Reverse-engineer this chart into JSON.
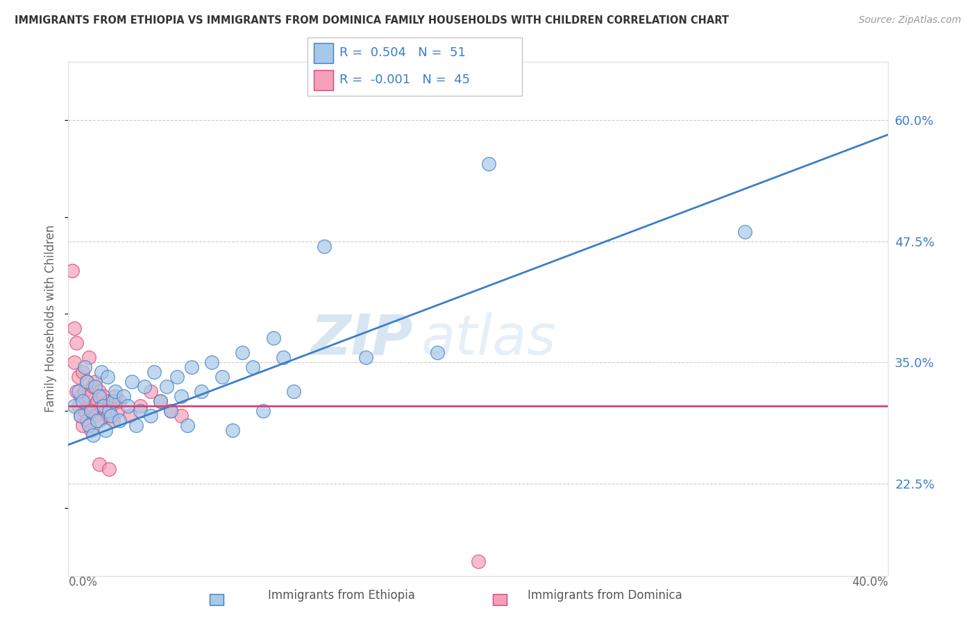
{
  "title": "IMMIGRANTS FROM ETHIOPIA VS IMMIGRANTS FROM DOMINICA FAMILY HOUSEHOLDS WITH CHILDREN CORRELATION CHART",
  "source": "Source: ZipAtlas.com",
  "xlabel_bottom_left": "0.0%",
  "xlabel_bottom_right": "40.0%",
  "ylabel_label": "Family Households with Children",
  "y_ticks_right": [
    22.5,
    35.0,
    47.5,
    60.0
  ],
  "xlim": [
    0.0,
    40.0
  ],
  "ylim": [
    13.0,
    66.0
  ],
  "legend_label_blue": "Immigrants from Ethiopia",
  "legend_label_pink": "Immigrants from Dominica",
  "R_blue": 0.504,
  "N_blue": 51,
  "R_pink": -0.001,
  "N_pink": 45,
  "color_blue": "#a8c8e8",
  "color_pink": "#f4a0b8",
  "line_blue": "#3a7ec8",
  "line_pink": "#e04070",
  "watermark_zip": "ZIP",
  "watermark_atlas": "atlas",
  "blue_dots": [
    [
      0.3,
      30.5
    ],
    [
      0.5,
      32.0
    ],
    [
      0.6,
      29.5
    ],
    [
      0.7,
      31.0
    ],
    [
      0.8,
      34.5
    ],
    [
      0.9,
      33.0
    ],
    [
      1.0,
      28.5
    ],
    [
      1.1,
      30.0
    ],
    [
      1.2,
      27.5
    ],
    [
      1.3,
      32.5
    ],
    [
      1.4,
      29.0
    ],
    [
      1.5,
      31.5
    ],
    [
      1.6,
      34.0
    ],
    [
      1.7,
      30.5
    ],
    [
      1.8,
      28.0
    ],
    [
      1.9,
      33.5
    ],
    [
      2.0,
      30.0
    ],
    [
      2.1,
      29.5
    ],
    [
      2.2,
      31.0
    ],
    [
      2.3,
      32.0
    ],
    [
      2.5,
      29.0
    ],
    [
      2.7,
      31.5
    ],
    [
      2.9,
      30.5
    ],
    [
      3.1,
      33.0
    ],
    [
      3.3,
      28.5
    ],
    [
      3.5,
      30.0
    ],
    [
      3.7,
      32.5
    ],
    [
      4.0,
      29.5
    ],
    [
      4.2,
      34.0
    ],
    [
      4.5,
      31.0
    ],
    [
      4.8,
      32.5
    ],
    [
      5.0,
      30.0
    ],
    [
      5.3,
      33.5
    ],
    [
      5.5,
      31.5
    ],
    [
      5.8,
      28.5
    ],
    [
      6.0,
      34.5
    ],
    [
      6.5,
      32.0
    ],
    [
      7.0,
      35.0
    ],
    [
      7.5,
      33.5
    ],
    [
      8.0,
      28.0
    ],
    [
      8.5,
      36.0
    ],
    [
      9.0,
      34.5
    ],
    [
      9.5,
      30.0
    ],
    [
      10.0,
      37.5
    ],
    [
      10.5,
      35.5
    ],
    [
      11.0,
      32.0
    ],
    [
      12.5,
      47.0
    ],
    [
      14.5,
      35.5
    ],
    [
      18.0,
      36.0
    ],
    [
      20.5,
      55.5
    ],
    [
      33.0,
      48.5
    ]
  ],
  "pink_dots": [
    [
      0.2,
      44.5
    ],
    [
      0.3,
      38.5
    ],
    [
      0.3,
      35.0
    ],
    [
      0.4,
      32.0
    ],
    [
      0.4,
      37.0
    ],
    [
      0.5,
      30.5
    ],
    [
      0.5,
      33.5
    ],
    [
      0.6,
      31.5
    ],
    [
      0.6,
      29.5
    ],
    [
      0.7,
      34.0
    ],
    [
      0.7,
      28.5
    ],
    [
      0.8,
      32.0
    ],
    [
      0.8,
      30.0
    ],
    [
      0.9,
      33.0
    ],
    [
      0.9,
      29.0
    ],
    [
      1.0,
      31.5
    ],
    [
      1.0,
      35.5
    ],
    [
      1.1,
      30.0
    ],
    [
      1.1,
      28.0
    ],
    [
      1.2,
      32.5
    ],
    [
      1.2,
      30.5
    ],
    [
      1.3,
      29.5
    ],
    [
      1.3,
      33.0
    ],
    [
      1.4,
      31.0
    ],
    [
      1.5,
      32.0
    ],
    [
      1.5,
      29.0
    ],
    [
      1.6,
      30.5
    ],
    [
      1.7,
      31.5
    ],
    [
      1.8,
      30.0
    ],
    [
      1.9,
      29.5
    ],
    [
      2.0,
      31.0
    ],
    [
      2.1,
      30.5
    ],
    [
      2.2,
      29.0
    ],
    [
      2.3,
      31.5
    ],
    [
      2.4,
      30.0
    ],
    [
      2.5,
      31.0
    ],
    [
      3.0,
      29.5
    ],
    [
      3.5,
      30.5
    ],
    [
      4.0,
      32.0
    ],
    [
      4.5,
      31.0
    ],
    [
      5.0,
      30.0
    ],
    [
      5.5,
      29.5
    ],
    [
      1.5,
      24.5
    ],
    [
      2.0,
      24.0
    ],
    [
      20.0,
      14.5
    ]
  ],
  "blue_trend_x": [
    0.0,
    40.0
  ],
  "blue_trend_y": [
    26.5,
    58.5
  ],
  "pink_trend_x": [
    0.0,
    40.0
  ],
  "pink_trend_y": [
    30.5,
    30.5
  ]
}
